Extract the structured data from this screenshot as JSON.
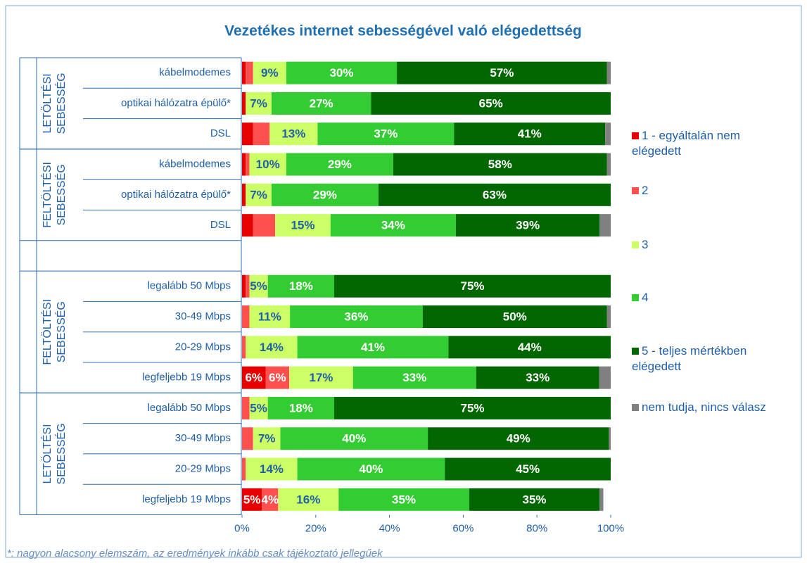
{
  "chart_data": {
    "type": "stacked_bar_horizontal",
    "title": "Vezetékes internet sebességével való elégedettség",
    "footnote": "*: nagyon alacsony elemszám, az eredmények inkább csak tájékoztató jellegűek",
    "groups": [
      {
        "label": [
          "LETÖLTÉSI",
          "SEBESSÉG"
        ]
      },
      {
        "label": [
          "FELTÖLTÉSI",
          "SEBESSÉG"
        ]
      },
      {
        "label": [
          "FELTÖLTÉSI",
          "SEBESSÉG"
        ]
      },
      {
        "label": [
          "LETÖLTÉSI",
          "SEBESSÉG"
        ]
      }
    ],
    "categories": [
      "kábelmodemes",
      "optikai hálózatra épülő*",
      "DSL",
      "kábelmodemes",
      "optikai hálózatra épülő*",
      "DSL",
      null,
      "legalább 50 Mbps",
      "30-49 Mbps",
      "20-29 Mbps",
      "legfeljebb 19 Mbps",
      "legalább 50 Mbps",
      "30-49 Mbps",
      "20-29 Mbps",
      "legfeljebb 19 Mbps"
    ],
    "series": [
      {
        "name": "1 - egyáltalán nem elégedett",
        "color": "#e60000",
        "label_color": "#ffffff",
        "values": [
          1,
          1,
          3,
          1,
          1,
          3,
          null,
          1,
          0,
          0,
          6.4,
          0,
          0,
          0,
          5.4
        ],
        "value_labels": [
          null,
          null,
          null,
          null,
          null,
          null,
          null,
          null,
          null,
          null,
          "6%",
          null,
          null,
          null,
          "5%"
        ]
      },
      {
        "name": "2",
        "color": "#ff5050",
        "label_color": "#ffffff",
        "values": [
          2,
          0,
          4.5,
          1,
          0,
          6,
          null,
          1,
          2,
          1,
          6.4,
          2,
          3,
          1,
          4.4
        ],
        "value_labels": [
          null,
          null,
          null,
          null,
          null,
          null,
          null,
          null,
          null,
          null,
          "6%",
          null,
          null,
          null,
          "4%"
        ]
      },
      {
        "name": "3",
        "color": "#ccff66",
        "label_color": "#1f5fa8",
        "values": [
          9,
          7,
          13,
          10,
          7,
          15,
          null,
          5,
          11,
          14,
          17.3,
          5,
          7.4,
          14,
          16.4
        ],
        "value_labels": [
          "9%",
          "7%",
          "13%",
          "10%",
          "7%",
          "15%",
          null,
          "5%",
          "11%",
          "14%",
          "17%",
          "5%",
          "7%",
          "14%",
          "16%"
        ]
      },
      {
        "name": "4",
        "color": "#33cc33",
        "label_color": "#ffffff",
        "values": [
          30,
          27,
          37,
          29,
          29,
          34,
          null,
          18,
          36,
          41,
          33.4,
          18,
          40,
          40,
          35.4
        ],
        "value_labels": [
          "30%",
          "27%",
          "37%",
          "29%",
          "29%",
          "34%",
          null,
          "18%",
          "36%",
          "41%",
          "33%",
          "18%",
          "40%",
          "40%",
          "35%"
        ]
      },
      {
        "name": "5 - teljes mértékben elégedett",
        "color": "#006600",
        "label_color": "#ffffff",
        "values": [
          57,
          65,
          41,
          58,
          63,
          39,
          null,
          75,
          50,
          44,
          33.4,
          75,
          49.1,
          45,
          35.4
        ],
        "value_labels": [
          "57%",
          "65%",
          "41%",
          "58%",
          "63%",
          "39%",
          null,
          "75%",
          "50%",
          "44%",
          "33%",
          "75%",
          "49%",
          "45%",
          "35%"
        ]
      },
      {
        "name": "nem tudja, nincs válasz",
        "color": "#808080",
        "values": [
          1,
          0,
          1.5,
          1,
          0,
          3,
          null,
          0,
          1,
          0,
          3.1,
          0,
          0.5,
          0,
          1
        ]
      }
    ],
    "xlim": [
      0,
      100
    ],
    "xticks": [
      {
        "value": 0,
        "label": "0%"
      },
      {
        "value": 20,
        "label": "20%"
      },
      {
        "value": 40,
        "label": "40%"
      },
      {
        "value": 60,
        "label": "60%"
      },
      {
        "value": 80,
        "label": "80%"
      },
      {
        "value": 100,
        "label": "100%"
      }
    ]
  }
}
